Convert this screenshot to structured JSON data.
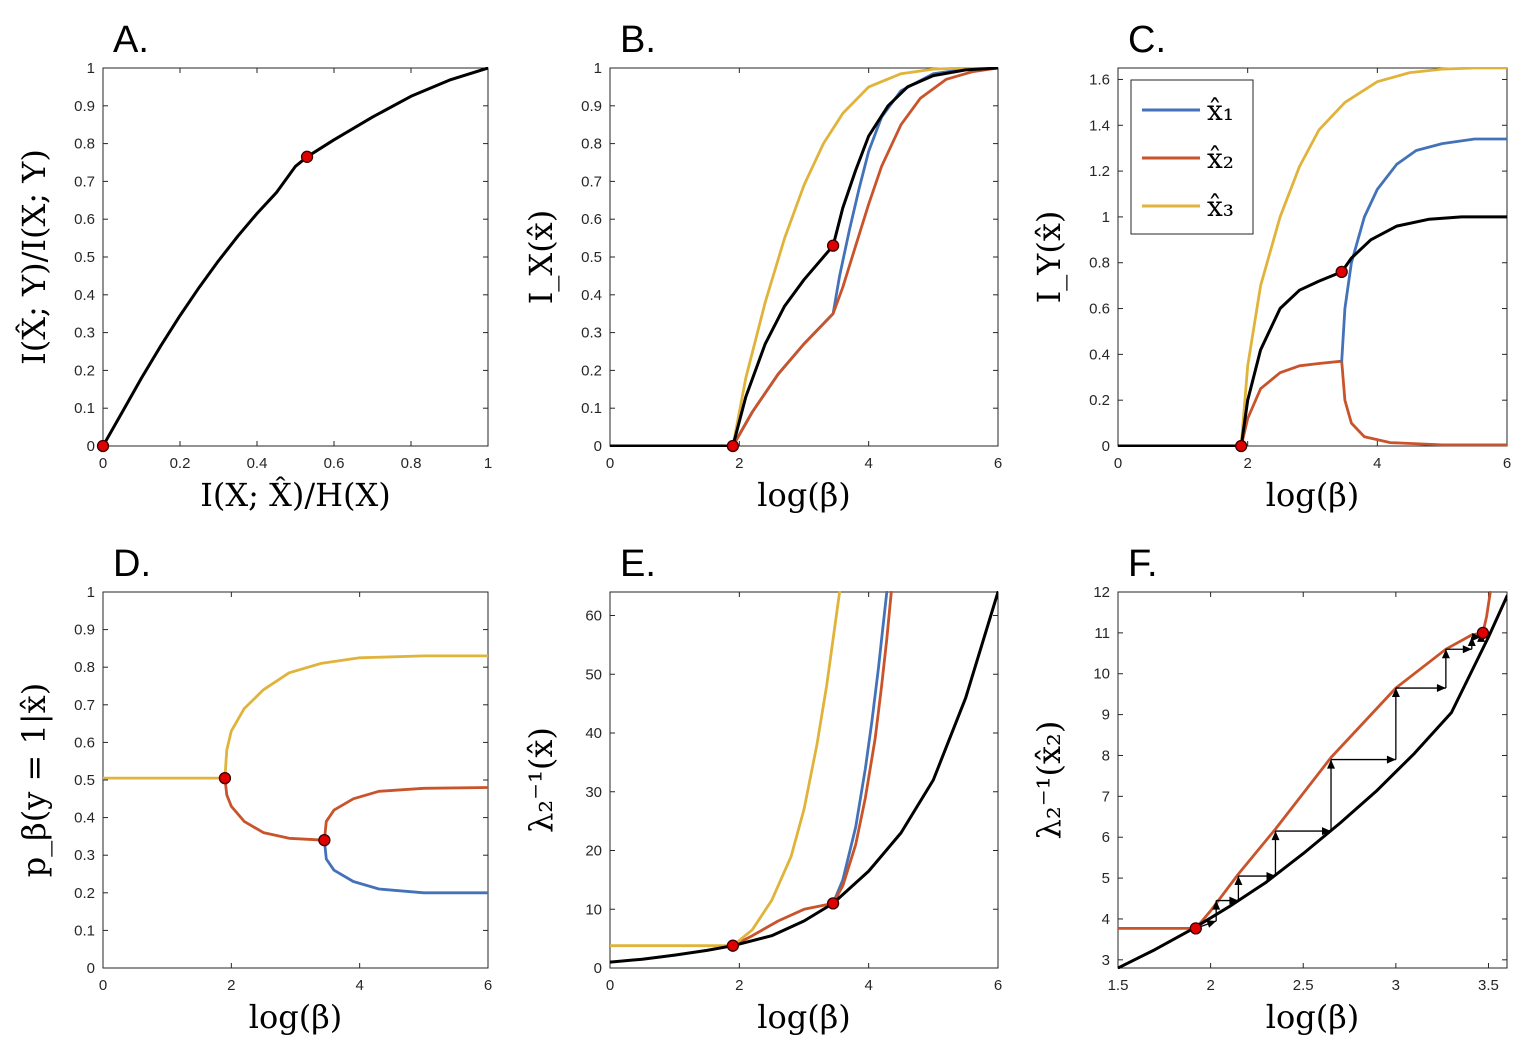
{
  "colors": {
    "blue": "#4372B8",
    "orange": "#C9532A",
    "yellow": "#E0B33B",
    "black": "#000000",
    "marker": "#E00000"
  },
  "legend": {
    "items": [
      {
        "label": "x̂₁",
        "color": "#4372B8"
      },
      {
        "label": "x̂₂",
        "color": "#C9532A"
      },
      {
        "label": "x̂₃",
        "color": "#E0B33B"
      }
    ]
  },
  "chart_data": [
    {
      "id": "A",
      "type": "line",
      "panel_label": "A.",
      "xlabel": "I(X; X̂)/H(X)",
      "ylabel": "I(X̂; Y)/I(X; Y)",
      "xlim": [
        0,
        1
      ],
      "ylim": [
        0,
        1
      ],
      "xticks": [
        0,
        0.2,
        0.4,
        0.6,
        0.8,
        1
      ],
      "xticklabels": [
        "0",
        "0.2",
        "0.4",
        "0.6",
        "0.8",
        "1"
      ],
      "yticks": [
        0,
        0.1,
        0.2,
        0.3,
        0.4,
        0.5,
        0.6,
        0.7,
        0.8,
        0.9,
        1
      ],
      "yticklabels": [
        "0",
        "0.1",
        "0.2",
        "0.3",
        "0.4",
        "0.5",
        "0.6",
        "0.7",
        "0.8",
        "0.9",
        "1"
      ],
      "series": [
        {
          "color": "black",
          "x": [
            0,
            0.05,
            0.1,
            0.15,
            0.2,
            0.25,
            0.3,
            0.35,
            0.4,
            0.45,
            0.5,
            0.53,
            0.6,
            0.7,
            0.8,
            0.9,
            1.0
          ],
          "y": [
            0,
            0.09,
            0.18,
            0.265,
            0.345,
            0.42,
            0.49,
            0.555,
            0.615,
            0.67,
            0.74,
            0.765,
            0.81,
            0.87,
            0.925,
            0.968,
            1.0
          ]
        }
      ],
      "markers": [
        {
          "x": 0,
          "y": 0
        },
        {
          "x": 0.53,
          "y": 0.765
        }
      ]
    },
    {
      "id": "B",
      "type": "line",
      "panel_label": "B.",
      "xlabel": "log(β)",
      "ylabel": "I_X(x̂)",
      "xlim": [
        0,
        6
      ],
      "ylim": [
        0,
        1
      ],
      "xticks": [
        0,
        2,
        4,
        6
      ],
      "xticklabels": [
        "0",
        "2",
        "4",
        "6"
      ],
      "yticks": [
        0,
        0.1,
        0.2,
        0.3,
        0.4,
        0.5,
        0.6,
        0.7,
        0.8,
        0.9,
        1
      ],
      "yticklabels": [
        "0",
        "0.1",
        "0.2",
        "0.3",
        "0.4",
        "0.5",
        "0.6",
        "0.7",
        "0.8",
        "0.9",
        "1"
      ],
      "series": [
        {
          "color": "blue",
          "x": [
            0,
            1.9,
            2.2,
            2.6,
            3.0,
            3.45,
            3.55,
            3.7,
            3.85,
            4.0,
            4.2,
            4.5,
            5.0,
            5.5,
            6.0
          ],
          "y": [
            0,
            0,
            0.09,
            0.19,
            0.27,
            0.35,
            0.45,
            0.57,
            0.68,
            0.78,
            0.87,
            0.94,
            0.985,
            0.997,
            1.0
          ]
        },
        {
          "color": "orange",
          "x": [
            0,
            1.9,
            2.2,
            2.6,
            3.0,
            3.45,
            3.6,
            3.8,
            4.0,
            4.2,
            4.5,
            4.8,
            5.2,
            5.6,
            6.0
          ],
          "y": [
            0,
            0,
            0.09,
            0.19,
            0.27,
            0.35,
            0.42,
            0.53,
            0.64,
            0.74,
            0.85,
            0.92,
            0.97,
            0.99,
            1.0
          ]
        },
        {
          "color": "yellow",
          "x": [
            0,
            1.9,
            2.1,
            2.4,
            2.7,
            3.0,
            3.3,
            3.6,
            4.0,
            4.5,
            5.0,
            5.5,
            6.0
          ],
          "y": [
            0,
            0,
            0.18,
            0.38,
            0.55,
            0.69,
            0.8,
            0.88,
            0.95,
            0.985,
            0.997,
            1.0,
            1.0
          ]
        },
        {
          "color": "black",
          "x": [
            0,
            1.9,
            2.1,
            2.4,
            2.7,
            3.0,
            3.45,
            3.6,
            3.8,
            4.0,
            4.3,
            4.6,
            5.0,
            5.5,
            6.0
          ],
          "y": [
            0,
            0,
            0.13,
            0.27,
            0.37,
            0.44,
            0.53,
            0.63,
            0.73,
            0.82,
            0.9,
            0.95,
            0.98,
            0.995,
            1.0
          ]
        }
      ],
      "markers": [
        {
          "x": 1.9,
          "y": 0
        },
        {
          "x": 3.45,
          "y": 0.53
        }
      ]
    },
    {
      "id": "C",
      "type": "line",
      "panel_label": "C.",
      "xlabel": "log(β)",
      "ylabel": "I_Y(x̂)",
      "xlim": [
        0,
        6
      ],
      "ylim": [
        0,
        1.65
      ],
      "xticks": [
        0,
        2,
        4,
        6
      ],
      "xticklabels": [
        "0",
        "2",
        "4",
        "6"
      ],
      "yticks": [
        0,
        0.2,
        0.4,
        0.6,
        0.8,
        1,
        1.2,
        1.4,
        1.6
      ],
      "yticklabels": [
        "0",
        "0.2",
        "0.4",
        "0.6",
        "0.8",
        "1",
        "1.2",
        "1.4",
        "1.6"
      ],
      "series": [
        {
          "color": "orange",
          "x": [
            0,
            1.9,
            2.0,
            2.2,
            2.5,
            2.8,
            3.1,
            3.45,
            3.5,
            3.6,
            3.8,
            4.2,
            5.0,
            6.0
          ],
          "y": [
            0,
            0,
            0.12,
            0.25,
            0.32,
            0.35,
            0.36,
            0.37,
            0.2,
            0.1,
            0.04,
            0.015,
            0.005,
            0.005
          ]
        },
        {
          "color": "blue",
          "x": [
            3.45,
            3.5,
            3.6,
            3.8,
            4.0,
            4.3,
            4.6,
            5.0,
            5.5,
            6.0
          ],
          "y": [
            0.37,
            0.6,
            0.8,
            1.0,
            1.12,
            1.23,
            1.29,
            1.32,
            1.34,
            1.34
          ]
        },
        {
          "color": "yellow",
          "x": [
            0,
            1.9,
            2.0,
            2.2,
            2.5,
            2.8,
            3.1,
            3.5,
            4.0,
            4.5,
            5.0,
            5.5,
            6.0
          ],
          "y": [
            0,
            0,
            0.35,
            0.7,
            1.0,
            1.22,
            1.38,
            1.5,
            1.59,
            1.63,
            1.645,
            1.65,
            1.65
          ]
        },
        {
          "color": "black",
          "x": [
            0,
            1.9,
            2.0,
            2.2,
            2.5,
            2.8,
            3.1,
            3.45,
            3.6,
            3.9,
            4.3,
            4.8,
            5.3,
            6.0
          ],
          "y": [
            0,
            0,
            0.2,
            0.42,
            0.6,
            0.68,
            0.72,
            0.76,
            0.82,
            0.9,
            0.96,
            0.99,
            1.0,
            1.0
          ]
        }
      ],
      "markers": [
        {
          "x": 1.9,
          "y": 0
        },
        {
          "x": 3.45,
          "y": 0.76
        }
      ]
    },
    {
      "id": "D",
      "type": "line",
      "panel_label": "D.",
      "xlabel": "log(β)",
      "ylabel": "p_β(y = 1|x̂)",
      "xlim": [
        0,
        6
      ],
      "ylim": [
        0,
        1
      ],
      "xticks": [
        0,
        2,
        4,
        6
      ],
      "xticklabels": [
        "0",
        "2",
        "4",
        "6"
      ],
      "yticks": [
        0,
        0.1,
        0.2,
        0.3,
        0.4,
        0.5,
        0.6,
        0.7,
        0.8,
        0.9,
        1
      ],
      "yticklabels": [
        "0",
        "0.1",
        "0.2",
        "0.3",
        "0.4",
        "0.5",
        "0.6",
        "0.7",
        "0.8",
        "0.9",
        "1"
      ],
      "series": [
        {
          "color": "yellow",
          "x": [
            0,
            1.9,
            1.93,
            2.0,
            2.2,
            2.5,
            2.9,
            3.4,
            4.0,
            5.0,
            6.0
          ],
          "y": [
            0.505,
            0.505,
            0.58,
            0.63,
            0.69,
            0.74,
            0.785,
            0.81,
            0.825,
            0.83,
            0.83
          ]
        },
        {
          "color": "orange",
          "x": [
            1.9,
            1.93,
            2.0,
            2.2,
            2.5,
            2.9,
            3.45,
            3.48,
            3.6,
            3.9,
            4.3,
            5.0,
            6.0
          ],
          "y": [
            0.505,
            0.46,
            0.43,
            0.39,
            0.36,
            0.345,
            0.34,
            0.39,
            0.42,
            0.45,
            0.47,
            0.478,
            0.48
          ]
        },
        {
          "color": "blue",
          "x": [
            3.45,
            3.48,
            3.6,
            3.9,
            4.3,
            5.0,
            6.0
          ],
          "y": [
            0.34,
            0.29,
            0.26,
            0.23,
            0.21,
            0.2,
            0.2
          ]
        }
      ],
      "markers": [
        {
          "x": 1.9,
          "y": 0.505
        },
        {
          "x": 3.45,
          "y": 0.34
        }
      ]
    },
    {
      "id": "E",
      "type": "line",
      "panel_label": "E.",
      "xlabel": "log(β)",
      "ylabel": "λ₂⁻¹(x̂)",
      "xlim": [
        0,
        6
      ],
      "ylim": [
        0,
        64
      ],
      "xticks": [
        0,
        2,
        4,
        6
      ],
      "xticklabels": [
        "0",
        "2",
        "4",
        "6"
      ],
      "yticks": [
        0,
        10,
        20,
        30,
        40,
        50,
        60
      ],
      "yticklabels": [
        "0",
        "10",
        "20",
        "30",
        "40",
        "50",
        "60"
      ],
      "series": [
        {
          "color": "blue",
          "x": [
            3.45,
            3.6,
            3.8,
            3.95,
            4.05,
            4.15,
            4.22,
            4.28
          ],
          "y": [
            11,
            15,
            24,
            34,
            42,
            51,
            58,
            64
          ]
        },
        {
          "color": "orange",
          "x": [
            1.9,
            2.2,
            2.6,
            3.0,
            3.45,
            3.6,
            3.8,
            3.95,
            4.1,
            4.2,
            4.28,
            4.35
          ],
          "y": [
            3.8,
            5.5,
            8.0,
            10.0,
            11.0,
            14,
            21,
            29,
            39,
            48,
            56,
            64
          ]
        },
        {
          "color": "yellow",
          "x": [
            0,
            1.9,
            2.2,
            2.5,
            2.8,
            3.0,
            3.2,
            3.35,
            3.45,
            3.55
          ],
          "y": [
            3.8,
            3.8,
            6.5,
            11.5,
            19,
            27,
            38,
            48,
            56,
            64
          ]
        },
        {
          "color": "black",
          "x": [
            0,
            0.5,
            1.0,
            1.5,
            1.9,
            2.5,
            3.0,
            3.45,
            4.0,
            4.5,
            5.0,
            5.5,
            6.0
          ],
          "y": [
            1.0,
            1.5,
            2.2,
            3.0,
            3.8,
            5.5,
            8.0,
            11.0,
            16.5,
            23,
            32,
            46,
            64
          ]
        }
      ],
      "markers": [
        {
          "x": 1.9,
          "y": 3.8
        },
        {
          "x": 3.45,
          "y": 11
        }
      ]
    },
    {
      "id": "F",
      "type": "line",
      "panel_label": "F.",
      "xlabel": "log(β)",
      "ylabel": "λ₂⁻¹(x̂₂)",
      "xlim": [
        1.5,
        3.6
      ],
      "ylim": [
        2.8,
        12
      ],
      "xticks": [
        1.5,
        2,
        2.5,
        3,
        3.5
      ],
      "xticklabels": [
        "1.5",
        "2",
        "2.5",
        "3",
        "3.5"
      ],
      "yticks": [
        3,
        4,
        5,
        6,
        7,
        8,
        9,
        10,
        11,
        12
      ],
      "yticklabels": [
        "3",
        "4",
        "5",
        "6",
        "7",
        "8",
        "9",
        "10",
        "11",
        "12"
      ],
      "series": [
        {
          "color": "orange",
          "x": [
            1.5,
            1.92,
            2.0,
            2.15,
            2.35,
            2.65,
            3.0,
            3.27,
            3.41,
            3.47,
            3.49,
            3.51
          ],
          "y": [
            3.77,
            3.77,
            4.2,
            5.1,
            6.2,
            7.95,
            9.65,
            10.6,
            10.95,
            11.0,
            11.4,
            12.0
          ]
        },
        {
          "color": "black",
          "x": [
            1.5,
            1.7,
            1.9,
            2.1,
            2.3,
            2.5,
            2.7,
            2.9,
            3.1,
            3.3,
            3.5,
            3.6
          ],
          "y": [
            2.8,
            3.25,
            3.75,
            4.3,
            4.9,
            5.6,
            6.35,
            7.15,
            8.05,
            9.05,
            10.9,
            11.9
          ]
        }
      ],
      "cobweb": [
        [
          1.92,
          3.77
        ],
        [
          2.03,
          3.95
        ],
        [
          2.03,
          4.45
        ],
        [
          2.15,
          4.45
        ],
        [
          2.15,
          5.05
        ],
        [
          2.35,
          5.05
        ],
        [
          2.35,
          6.15
        ],
        [
          2.65,
          6.15
        ],
        [
          2.65,
          7.9
        ],
        [
          3.0,
          7.9
        ],
        [
          3.0,
          9.65
        ],
        [
          3.27,
          9.65
        ],
        [
          3.27,
          10.6
        ],
        [
          3.41,
          10.6
        ],
        [
          3.41,
          10.9
        ],
        [
          3.46,
          10.9
        ],
        [
          3.46,
          11.0
        ]
      ],
      "markers": [
        {
          "x": 1.92,
          "y": 3.77
        },
        {
          "x": 3.47,
          "y": 11.0
        }
      ]
    }
  ]
}
